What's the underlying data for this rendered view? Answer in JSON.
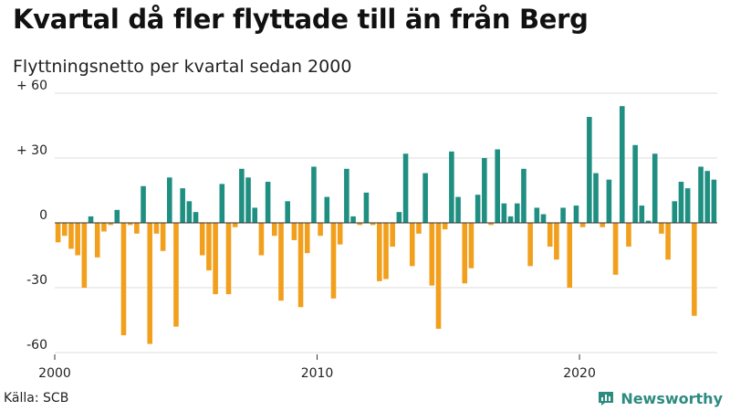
{
  "title": "Kvartal då fler flyttade till än från Berg",
  "subtitle": "Flyttningsnetto per kvartal sedan 2000",
  "source": "Källa: SCB",
  "brand": {
    "name": "Newsworthy",
    "icon": "newsworthy-chart-logo-icon"
  },
  "colors": {
    "positive": "#1f8f82",
    "negative": "#f29f1c",
    "grid": "#dddddd",
    "zero": "#333333"
  },
  "chart_data": {
    "type": "bar",
    "title": "",
    "xlabel": "",
    "ylabel": "",
    "ylim": [
      -62,
      62
    ],
    "yticks": [
      {
        "value": 60,
        "label": "+ 60"
      },
      {
        "value": 30,
        "label": "+ 30"
      },
      {
        "value": 0,
        "label": "0"
      },
      {
        "value": -30,
        "label": "-30"
      },
      {
        "value": -60,
        "label": "-60"
      }
    ],
    "xticks": [
      {
        "value": 2000,
        "label": "2000"
      },
      {
        "value": 2010,
        "label": "2010"
      },
      {
        "value": 2020,
        "label": "2020"
      }
    ],
    "first_quarter": "2000 Q1",
    "grid": true,
    "values": [
      -9,
      -6,
      -12,
      -15,
      -30,
      3,
      -16,
      -4,
      -1,
      6,
      -52,
      -1,
      -5,
      17,
      -56,
      -5,
      -13,
      21,
      -48,
      16,
      10,
      5,
      -15,
      -22,
      -33,
      18,
      -33,
      -2,
      25,
      21,
      7,
      -15,
      19,
      -6,
      -36,
      10,
      -8,
      -39,
      -14,
      26,
      -6,
      12,
      -35,
      -10,
      25,
      3,
      -1,
      14,
      -1,
      -27,
      -26,
      -11,
      5,
      32,
      -20,
      -5,
      23,
      -29,
      -49,
      -3,
      33,
      12,
      -28,
      -21,
      13,
      30,
      -1,
      34,
      9,
      3,
      9,
      25,
      -20,
      7,
      4,
      -11,
      -17,
      7,
      -30,
      8,
      -2,
      49,
      23,
      -2,
      20,
      -24,
      54,
      -11,
      36,
      8,
      1,
      32,
      -5,
      -17,
      10,
      19,
      16,
      -43,
      26,
      24,
      20
    ]
  }
}
